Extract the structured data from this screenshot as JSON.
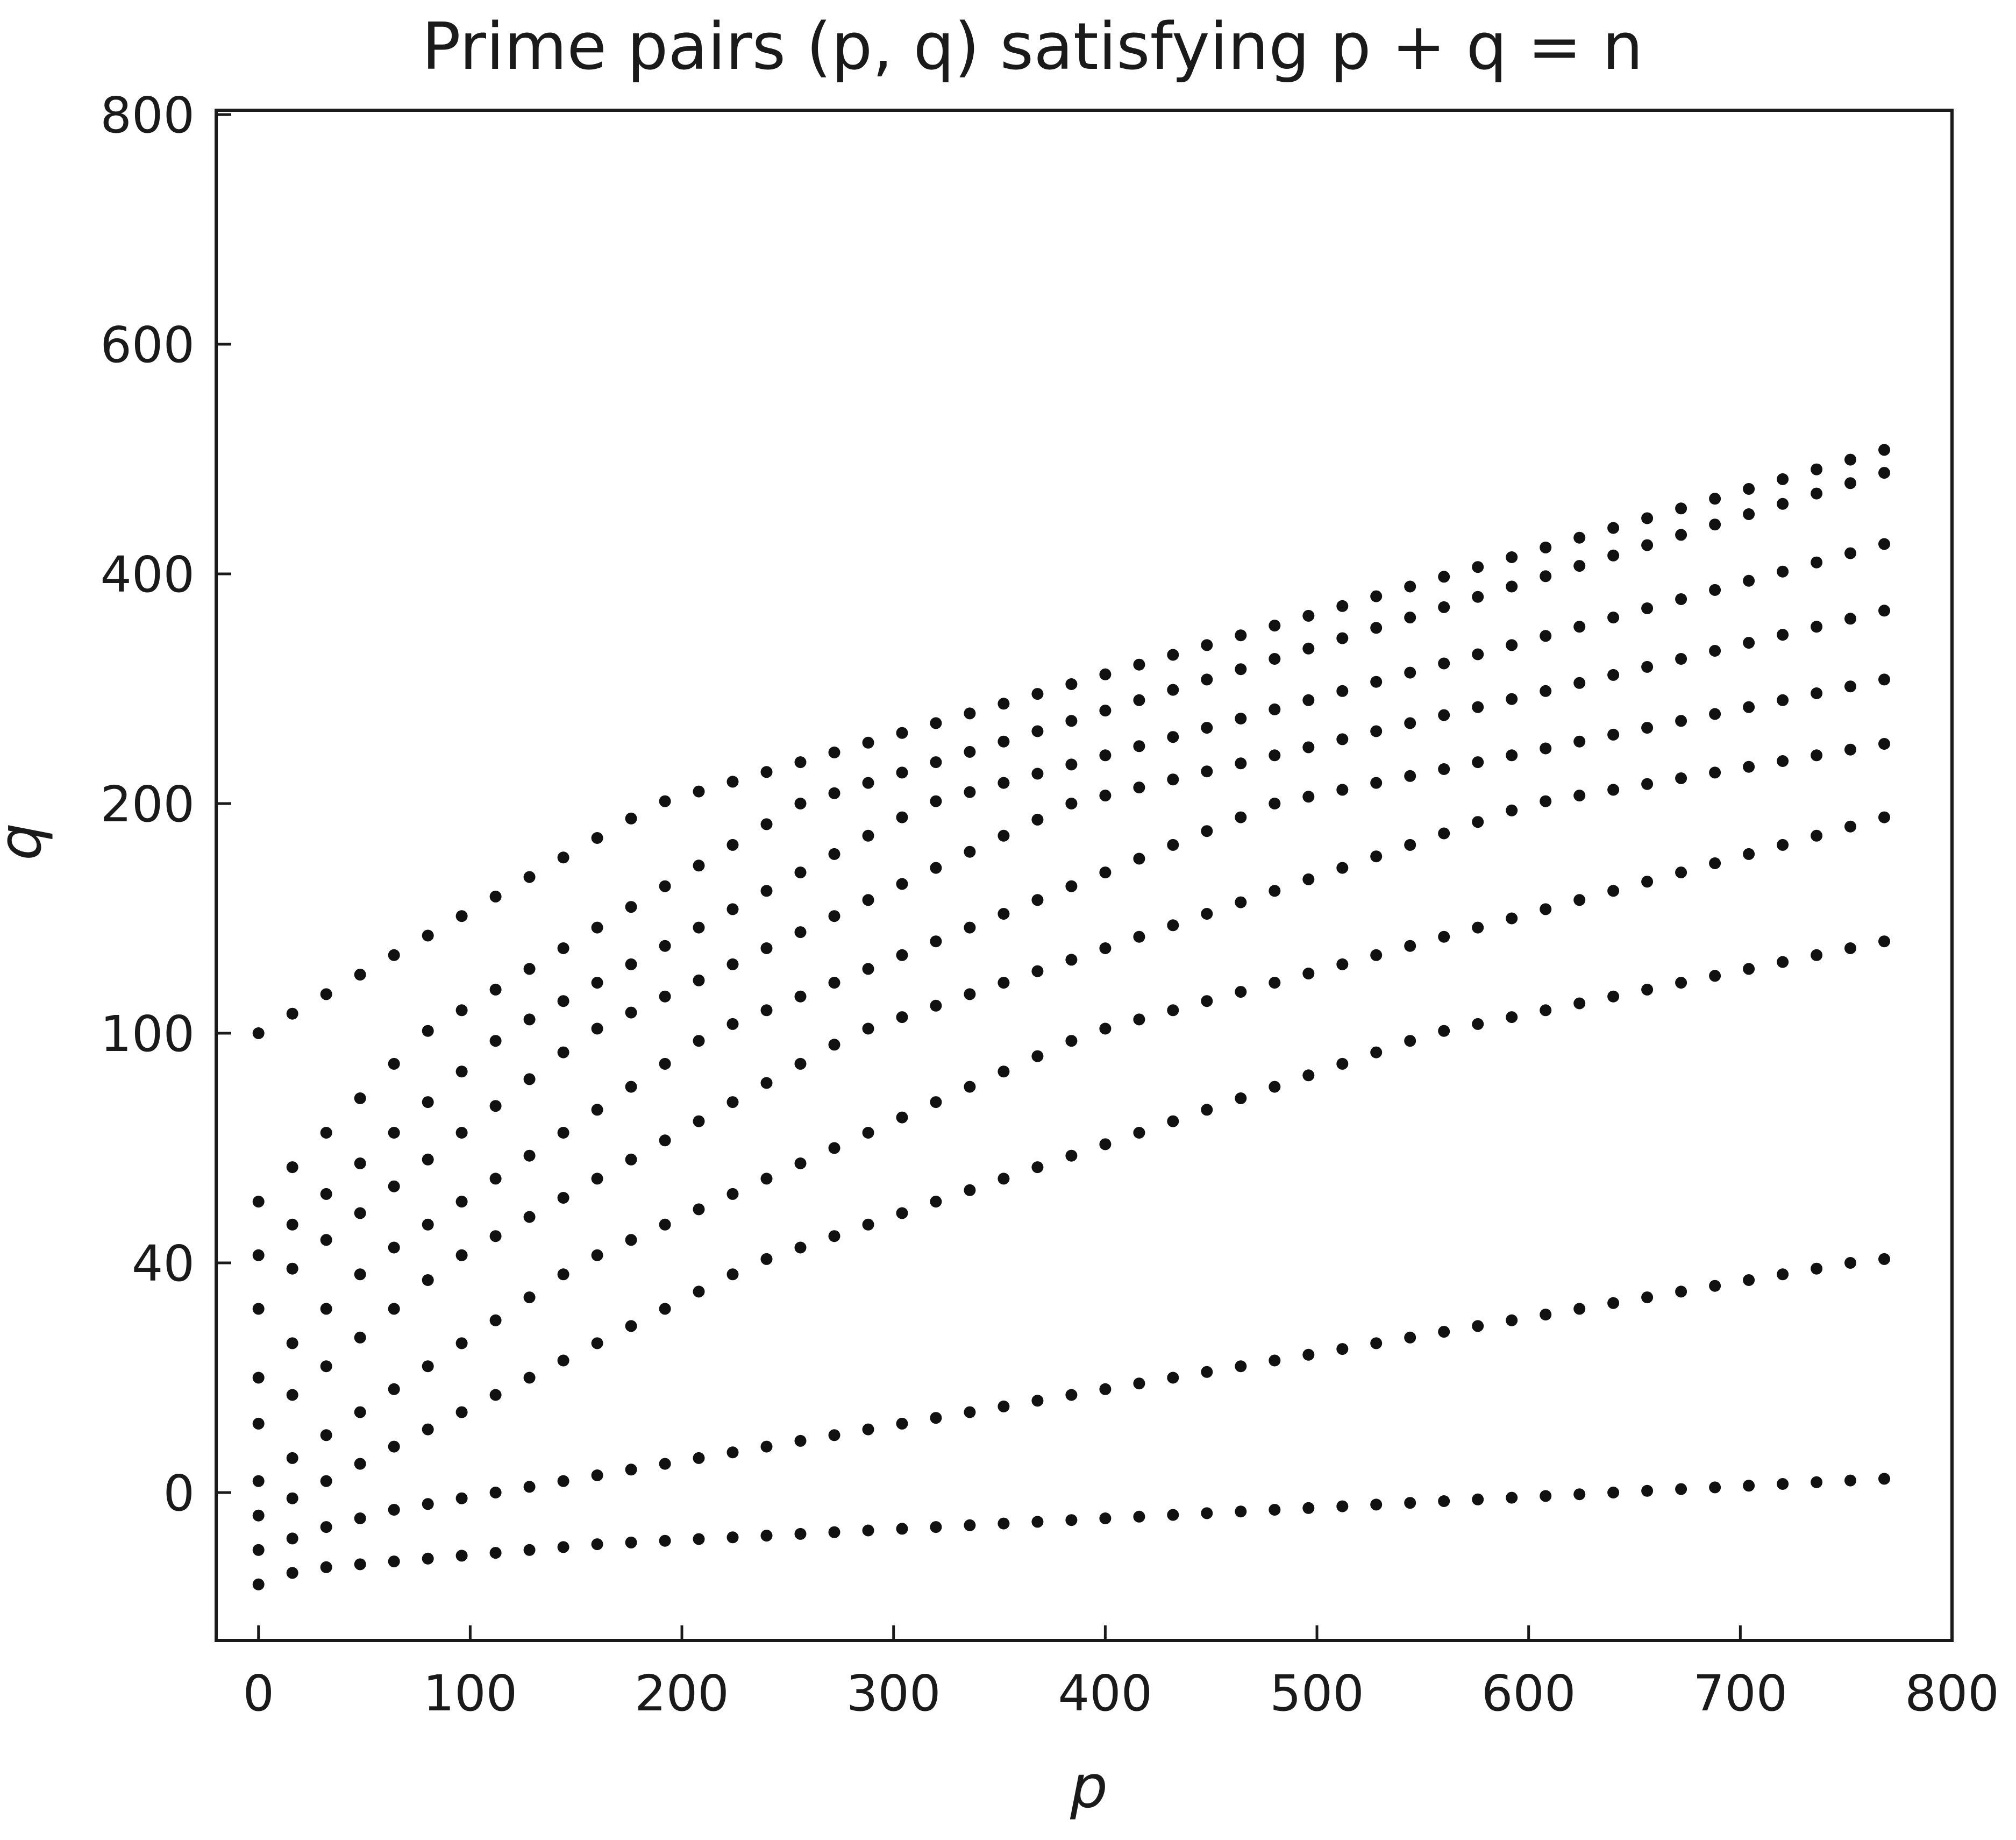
{
  "chart_data": {
    "type": "scatter",
    "title": "Prime pairs (p, q) satisfying p + q = n",
    "xlabel": "p",
    "ylabel": "q",
    "xlim": [
      -20,
      800
    ],
    "ylim": [
      -30,
      800
    ],
    "x_ticks": [
      0,
      100,
      200,
      300,
      400,
      500,
      600,
      700,
      800
    ],
    "y_ticks": [
      {
        "label": "0",
        "level": 0
      },
      {
        "label": "40",
        "level": 1
      },
      {
        "label": "100",
        "level": 2
      },
      {
        "label": "200",
        "level": 3
      },
      {
        "label": "400",
        "level": 4
      },
      {
        "label": "600",
        "level": 5
      },
      {
        "label": "800",
        "level": 6
      }
    ],
    "y_scale": "non-uniform (tick labels 0, 40, 100, 200, 400, 600, 800 at equal spacing)",
    "grid": false,
    "legend": "none",
    "marker_color": "#111111",
    "x": [
      0,
      16,
      32,
      48,
      64,
      80,
      96,
      112,
      128,
      144,
      160,
      176,
      192,
      208,
      224,
      240,
      256,
      272,
      288,
      304,
      320,
      336,
      352,
      368,
      384,
      400,
      416,
      432,
      448,
      464,
      480,
      496,
      512,
      528,
      544,
      560,
      576,
      592,
      608,
      624,
      640,
      656,
      672,
      688,
      704,
      720,
      736,
      752,
      768
    ],
    "series": [
      {
        "y": [
          -16.0,
          -14.0,
          -13.0,
          -12.5,
          -12.0,
          -11.5,
          -11.0,
          -10.5,
          -10.0,
          -9.5,
          -9.0,
          -8.7,
          -8.4,
          -8.1,
          -7.8,
          -7.5,
          -7.2,
          -6.9,
          -6.6,
          -6.3,
          -6.0,
          -5.7,
          -5.4,
          -5.1,
          -4.8,
          -4.5,
          -4.2,
          -3.9,
          -3.6,
          -3.3,
          -3.0,
          -2.7,
          -2.4,
          -2.1,
          -1.8,
          -1.5,
          -1.2,
          -0.9,
          -0.6,
          -0.3,
          0.0,
          0.3,
          0.6,
          0.9,
          1.2,
          1.5,
          1.8,
          2.1,
          2.4
        ]
      },
      {
        "y": [
          -10.0,
          -8.0,
          -6.0,
          -4.5,
          -3.0,
          -2.0,
          -1.0,
          0.0,
          1.0,
          2.0,
          3.0,
          4.0,
          5.0,
          6.0,
          7.0,
          8.0,
          9.0,
          10.0,
          11.0,
          12.0,
          13.0,
          14.0,
          15.0,
          16.0,
          17.0,
          18.0,
          19.0,
          20.0,
          21.0,
          22.0,
          23.0,
          24.0,
          25.0,
          26.0,
          27.0,
          28.0,
          29.0,
          30.0,
          31.0,
          32.0,
          33.0,
          34.0,
          35.0,
          36.0,
          37.0,
          38.0,
          39.0,
          40.0,
          41.0
        ]
      },
      {
        "y": [
          -4.0,
          -1.0,
          2.0,
          5.0,
          8.0,
          11.0,
          14.0,
          17.0,
          20.0,
          23.0,
          26.0,
          29.0,
          32.0,
          35.0,
          38.0,
          41.0,
          44.0,
          47.0,
          50.0,
          53.0,
          56.0,
          59.0,
          62.0,
          65.0,
          68.0,
          71.0,
          74.0,
          77.0,
          80.0,
          83.0,
          86.0,
          89.0,
          92.0,
          95.0,
          98.0,
          101.0,
          104.0,
          107.0,
          110.0,
          113.0,
          116.0,
          119.0,
          122.0,
          125.0,
          128.0,
          131.0,
          134.0,
          137.0,
          140.0
        ]
      },
      {
        "y": [
          2.0,
          6.0,
          10.0,
          14.0,
          18.0,
          22.0,
          26.0,
          30.0,
          34.0,
          38.0,
          42.0,
          46.0,
          50.0,
          54.0,
          58.0,
          62.0,
          66.0,
          70.0,
          74.0,
          78.0,
          82.0,
          86.0,
          90.0,
          94.0,
          98.0,
          102.0,
          106.0,
          110.0,
          114.0,
          118.0,
          122.0,
          126.0,
          130.0,
          134.0,
          138.0,
          142.0,
          146.0,
          150.0,
          154.0,
          158.0,
          162.0,
          166.0,
          170.0,
          174.0,
          178.0,
          182.0,
          186.0,
          190.0,
          194.0
        ]
      },
      {
        "y": [
          12.0,
          17.0,
          22.0,
          27.0,
          32.0,
          37.0,
          42.0,
          47.0,
          52.0,
          57.0,
          62.0,
          67.0,
          72.0,
          77.0,
          82.0,
          87.0,
          92.0,
          97.0,
          102.0,
          107.0,
          112.0,
          117.0,
          122.0,
          127.0,
          132.0,
          137.0,
          142.0,
          147.0,
          152.0,
          157.0,
          162.0,
          167.0,
          172.0,
          177.0,
          182.0,
          187.0,
          192.0,
          197.0,
          202.0,
          207.0,
          212.0,
          217.0,
          222.0,
          227.0,
          232.0,
          237.0,
          242.0,
          247.0,
          252.0
        ]
      },
      {
        "y": [
          20.0,
          26.0,
          32.0,
          38.0,
          44.0,
          50.0,
          56.0,
          62.0,
          68.0,
          74.0,
          80.0,
          86.0,
          92.0,
          98.0,
          104.0,
          110.0,
          116.0,
          122.0,
          128.0,
          134.0,
          140.0,
          146.0,
          152.0,
          158.0,
          164.0,
          170.0,
          176.0,
          182.0,
          188.0,
          194.0,
          200.0,
          206.0,
          212.0,
          218.0,
          224.0,
          230.0,
          236.0,
          242.0,
          248.0,
          254.0,
          260.0,
          266.0,
          272.0,
          278.0,
          284.0,
          290.0,
          296.0,
          302.0,
          308.0
        ]
      },
      {
        "y": [
          32.0,
          39.0,
          46.0,
          53.0,
          60.0,
          67.0,
          74.0,
          81.0,
          88.0,
          95.0,
          102.0,
          109.0,
          116.0,
          123.0,
          130.0,
          137.0,
          144.0,
          151.0,
          158.0,
          165.0,
          172.0,
          179.0,
          186.0,
          193.0,
          200.0,
          207.0,
          214.0,
          221.0,
          228.0,
          235.0,
          242.0,
          249.0,
          256.0,
          263.0,
          270.0,
          277.0,
          284.0,
          291.0,
          298.0,
          305.0,
          312.0,
          319.0,
          326.0,
          333.0,
          340.0,
          347.0,
          354.0,
          361.0,
          368.0
        ]
      },
      {
        "y": [
          42.0,
          50.0,
          58.0,
          66.0,
          74.0,
          82.0,
          90.0,
          98.0,
          106.0,
          114.0,
          122.0,
          130.0,
          138.0,
          146.0,
          154.0,
          162.0,
          170.0,
          178.0,
          186.0,
          194.0,
          202.0,
          210.0,
          218.0,
          226.0,
          234.0,
          242.0,
          250.0,
          258.0,
          266.0,
          274.0,
          282.0,
          290.0,
          298.0,
          306.0,
          314.0,
          322.0,
          330.0,
          338.0,
          346.0,
          354.0,
          362.0,
          370.0,
          378.0,
          386.0,
          394.0,
          402.0,
          410.0,
          418.0,
          426.0
        ]
      },
      {
        "y": [
          56.0,
          65.0,
          74.0,
          83.0,
          92.0,
          101.0,
          110.0,
          119.0,
          128.0,
          137.0,
          146.0,
          155.0,
          164.0,
          173.0,
          182.0,
          191.0,
          200.0,
          209.0,
          218.0,
          227.0,
          236.0,
          245.0,
          254.0,
          263.0,
          272.0,
          281.0,
          290.0,
          299.0,
          308.0,
          317.0,
          326.0,
          335.0,
          344.0,
          353.0,
          362.0,
          371.0,
          380.0,
          389.0,
          398.0,
          407.0,
          416.0,
          425.0,
          434.0,
          443.0,
          452.0,
          461.0,
          470.0,
          479.0,
          488.0
        ]
      },
      {
        "y": [
          100.0,
          108.5,
          117.0,
          125.5,
          134.0,
          142.5,
          151.0,
          159.5,
          168.0,
          176.5,
          185.0,
          193.5,
          202.0,
          210.5,
          219.0,
          227.5,
          236.0,
          244.5,
          253.0,
          261.5,
          270.0,
          278.5,
          287.0,
          295.5,
          304.0,
          312.5,
          321.0,
          329.5,
          338.0,
          346.5,
          355.0,
          363.5,
          372.0,
          380.5,
          389.0,
          397.5,
          406.0,
          414.5,
          423.0,
          431.5,
          440.0,
          448.5,
          457.0,
          465.5,
          474.0,
          482.5,
          491.0,
          499.5,
          508.0
        ]
      }
    ]
  }
}
